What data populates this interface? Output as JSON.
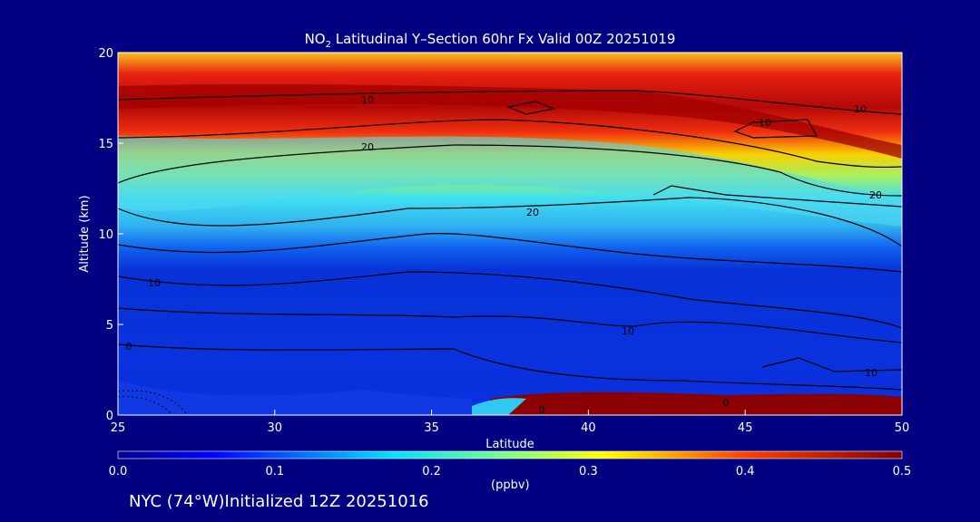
{
  "title": {
    "prefix": "NO",
    "subscript": "2",
    "suffix": " Latitudinal Y–Section 60hr  Fx Valid 00Z 20251019"
  },
  "chart_data": {
    "type": "heatmap",
    "xlabel": "Latitude",
    "ylabel": "Altitude (km)",
    "xlim": [
      25,
      50
    ],
    "ylim": [
      0,
      20
    ],
    "xticks": [
      "25",
      "30",
      "35",
      "40",
      "45",
      "50"
    ],
    "yticks": [
      "0",
      "5",
      "10",
      "15",
      "20"
    ],
    "contour_labels": [
      "10",
      "20",
      "10",
      "20",
      "20",
      "10",
      "10",
      "10",
      "10",
      "0",
      "0",
      "0"
    ],
    "colorbar": {
      "min": 0.0,
      "max": 0.5,
      "ticks": [
        "0.0",
        "0.1",
        "0.2",
        "0.3",
        "0.4",
        "0.5"
      ],
      "units": "(ppbv)"
    }
  },
  "footer": "NYC (74°W)Initialized 12Z 20251016",
  "colors": {
    "background": "#000080",
    "low": "#0a2ad8",
    "high": "#8b0000"
  }
}
